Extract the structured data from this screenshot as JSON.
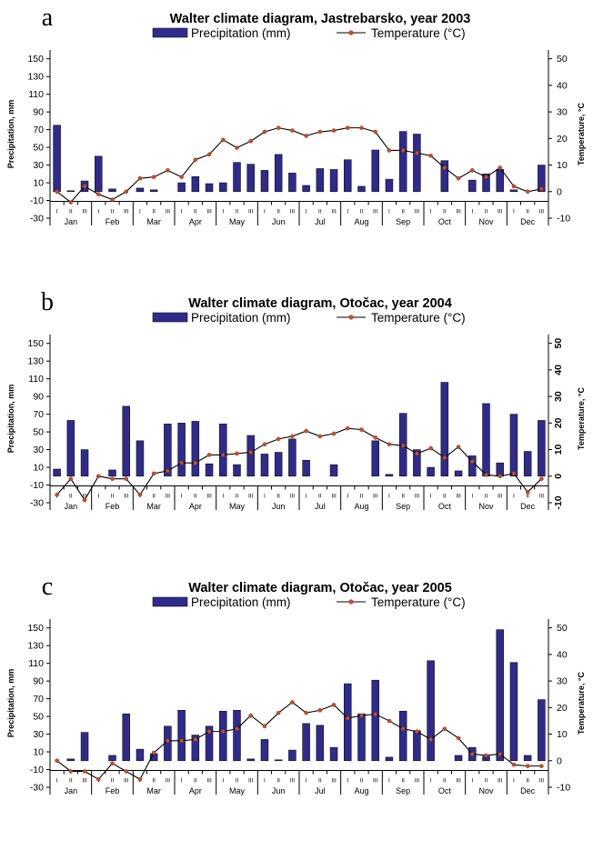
{
  "chart_data": [
    {
      "type": "bar+line",
      "panel_label": "a",
      "title": "Walter climate diagram, Jastrebarsko, year 2003",
      "legend": {
        "bar": "Precipitation (mm)",
        "line": "Temperature (°C)",
        "placement": "top"
      },
      "ylabel_left": "Precipitation, mm",
      "ylabel_right": "Temperature, °C",
      "y_left_ticks": [
        150,
        130,
        110,
        90,
        70,
        50,
        30,
        10,
        -10,
        -30
      ],
      "y_right_ticks": [
        50,
        40,
        30,
        20,
        10,
        0,
        -10
      ],
      "y_left_lim": [
        -30,
        160
      ],
      "y_right_lim": [
        -10,
        53.3
      ],
      "right_tick_label_rotation": "none",
      "months": [
        "Jan",
        "Feb",
        "Mar",
        "Apr",
        "May",
        "Jun",
        "Jul",
        "Aug",
        "Sep",
        "Oct",
        "Nov",
        "Dec"
      ],
      "decades": [
        "I",
        "II",
        "III"
      ],
      "precipitation": [
        75,
        1,
        12,
        40,
        3,
        0,
        4,
        2,
        0,
        10,
        17,
        9,
        10,
        33,
        31,
        24,
        42,
        21,
        7,
        26,
        25,
        36,
        6,
        47,
        14,
        68,
        65,
        0,
        35,
        0,
        13,
        20,
        25,
        2,
        0,
        30
      ],
      "temperature": [
        0,
        -4,
        2,
        -1,
        -3,
        0,
        5,
        5.5,
        8,
        5.5,
        12,
        14,
        19.5,
        16.5,
        19,
        22.5,
        24,
        23,
        21,
        22.5,
        23,
        24,
        24,
        22.5,
        15.5,
        15.5,
        14.5,
        13.5,
        9,
        5,
        8,
        5.5,
        9,
        2,
        0,
        1
      ]
    },
    {
      "type": "bar+line",
      "panel_label": "b",
      "title": "Walter climate diagram, Otočac, year 2004",
      "legend": {
        "bar": "Precipitation (mm)",
        "line": "Temperature (°C)",
        "placement": "top"
      },
      "ylabel_left": "Precipitation, mm",
      "ylabel_right": "Temperature, °C",
      "y_left_ticks": [
        150,
        130,
        110,
        90,
        70,
        50,
        30,
        10,
        -10,
        -30
      ],
      "y_right_ticks": [
        50,
        40,
        30,
        20,
        10,
        0,
        -10
      ],
      "y_left_lim": [
        -30,
        160
      ],
      "y_right_lim": [
        -10,
        53.3
      ],
      "right_tick_label_rotation": "rotated",
      "months": [
        "Jan",
        "Feb",
        "Mar",
        "Apr",
        "May",
        "Jun",
        "Jul",
        "Aug",
        "Sep",
        "Oct",
        "Nov",
        "Dec"
      ],
      "decades": [
        "I",
        "II",
        "III"
      ],
      "precipitation": [
        8,
        63,
        30,
        0,
        7,
        79,
        40,
        0,
        59,
        60,
        62,
        14,
        59,
        13,
        46,
        25,
        27,
        42,
        18,
        0,
        13,
        0,
        0,
        40,
        2,
        71,
        30,
        10,
        106,
        6,
        23,
        82,
        15,
        70,
        28,
        63
      ],
      "temperature": [
        -7,
        -1,
        -9,
        0,
        -1,
        -1,
        -7,
        1,
        2,
        5,
        5,
        8,
        8,
        8.5,
        9,
        12,
        14,
        15,
        17,
        15,
        16,
        18,
        17.5,
        14.5,
        12,
        11.5,
        8.5,
        10.5,
        7,
        11,
        5.5,
        0.5,
        0,
        1,
        -6,
        -1
      ]
    },
    {
      "type": "bar+line",
      "panel_label": "c",
      "title": "Walter climate diagram, Otočac, year 2005",
      "legend": {
        "bar": "Precipitation (mm)",
        "line": "Temperature (°C)",
        "placement": "top"
      },
      "ylabel_left": "Precipitation, mm",
      "ylabel_right": "Temperature, °C",
      "y_left_ticks": [
        150,
        130,
        110,
        90,
        70,
        50,
        30,
        10,
        -10,
        -30
      ],
      "y_right_ticks": [
        50,
        40,
        30,
        20,
        10,
        0,
        -10
      ],
      "y_left_lim": [
        -30,
        160
      ],
      "y_right_lim": [
        -10,
        53.3
      ],
      "right_tick_label_rotation": "none",
      "months": [
        "Jan",
        "Feb",
        "Mar",
        "Apr",
        "May",
        "Jun",
        "Jul",
        "Aug",
        "Sep",
        "Oct",
        "Nov",
        "Dec"
      ],
      "decades": [
        "I",
        "II",
        "III"
      ],
      "precipitation": [
        0,
        2,
        32,
        0,
        6,
        53,
        13,
        8,
        39,
        57,
        29,
        39,
        56,
        57,
        2,
        24,
        1,
        12,
        42,
        40,
        15,
        87,
        53,
        91,
        4,
        56,
        34,
        113,
        0,
        6,
        15,
        5,
        148,
        111,
        6,
        69
      ],
      "temperature": [
        0,
        -4,
        -4,
        -7,
        -1,
        -4,
        -7,
        3,
        7.5,
        7.5,
        8,
        11,
        11,
        12,
        17,
        13,
        18,
        22,
        18,
        19,
        21,
        16,
        17,
        17.5,
        15,
        12,
        11,
        8,
        12,
        8.5,
        2.5,
        2,
        2.5,
        -1.5,
        -2,
        -2
      ]
    }
  ]
}
